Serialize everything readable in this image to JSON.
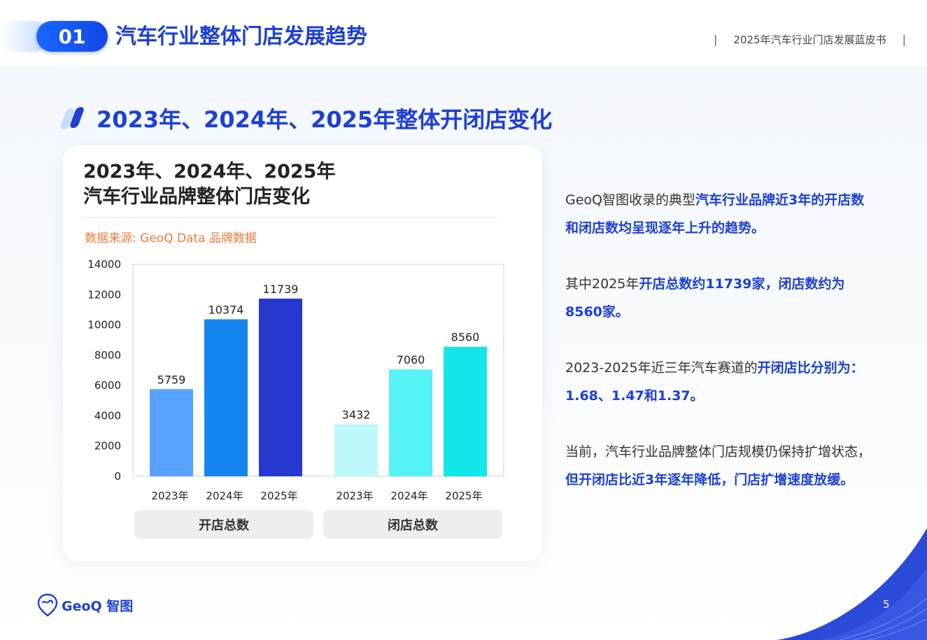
{
  "header": {
    "section_number": "01",
    "section_title": "汽车行业整体门店发展趋势",
    "report_title": "2025年汽车行业门店发展蓝皮书"
  },
  "subheading": "2023年、2024年、2025年整体开闭店变化",
  "card": {
    "title_line1": "2023年、2024年、2025年",
    "title_line2": "汽车行业品牌整体门店变化",
    "source": "数据来源: GeoQ Data 品牌数据"
  },
  "chart_data": {
    "type": "bar",
    "title": "2023年、2024年、2025年 汽车行业品牌整体门店变化",
    "ylim": [
      0,
      14000
    ],
    "yticks": [
      0,
      2000,
      4000,
      6000,
      8000,
      10000,
      12000,
      14000
    ],
    "grid": false,
    "groups": [
      {
        "name": "开店总数",
        "categories": [
          "2023年",
          "2024年",
          "2025年"
        ],
        "values": [
          5759,
          10374,
          11739
        ],
        "colors": [
          "#57a2ff",
          "#1686ee",
          "#2638d0"
        ]
      },
      {
        "name": "闭店总数",
        "categories": [
          "2023年",
          "2024年",
          "2025年"
        ],
        "values": [
          3432,
          7060,
          8560
        ],
        "colors": [
          "#bdf8fb",
          "#55f2f6",
          "#12e6e8"
        ]
      }
    ]
  },
  "analysis": {
    "p1": {
      "t1": "GeoQ智图收录的典型",
      "h1": "汽车行业品牌近3年的开店数和闭店数均呈现逐年上升的趋势。"
    },
    "p2": {
      "t1": "其中2025年",
      "h1": "开店总数约11739家，闭店数约为8560家。"
    },
    "p3": {
      "t1": "2023-2025年近三年汽车赛道的",
      "h1": "开闭店比分别为：1.68、1.47和1.37。"
    },
    "p4": {
      "t1": "当前，汽车行业品牌整体门店规模仍保持扩增状态，",
      "h1": "但开闭店比近3年逐年降低，门店扩增速度放缓。"
    }
  },
  "footer": {
    "logo_text": "GeoQ 智图",
    "page_number": "5"
  },
  "colors": {
    "brand_blue": "#1d3fd6",
    "source_orange": "#f07a3a"
  }
}
